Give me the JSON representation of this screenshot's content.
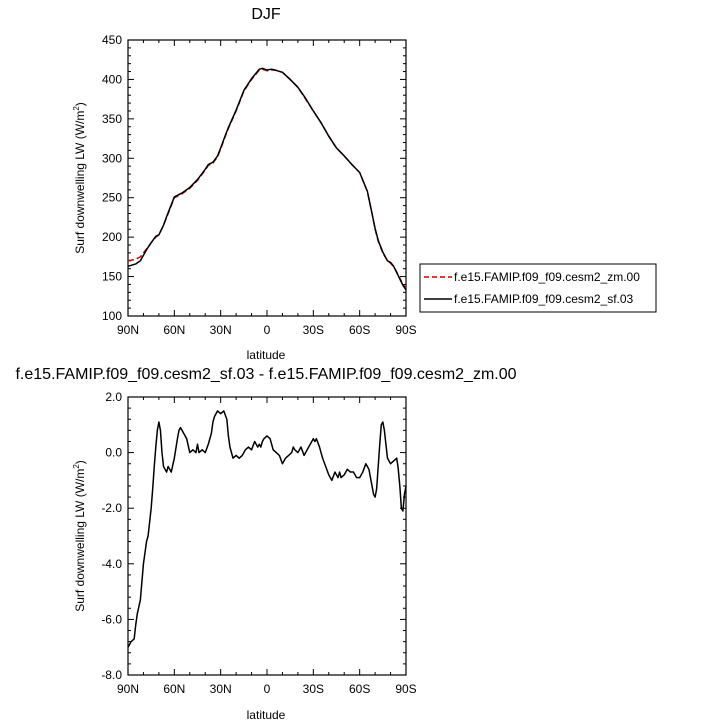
{
  "chart_data": [
    {
      "type": "line",
      "title": "DJF",
      "xlabel": "latitude",
      "ylabel": "Surf downwelling LW (W/m",
      "ylabel_sup": "2",
      "ylabel_end": ")",
      "x_ticklabels": [
        "90N",
        "60N",
        "30N",
        "0",
        "30S",
        "60S",
        "90S"
      ],
      "x_tickvalues": [
        90,
        60,
        30,
        0,
        -30,
        -60,
        -90
      ],
      "xlim": [
        90,
        -90
      ],
      "ylim": [
        100,
        450
      ],
      "y_ticks": [
        100,
        150,
        200,
        250,
        300,
        350,
        400,
        450
      ],
      "y_ticklabels": [
        "100",
        "150",
        "200",
        "250",
        "300",
        "350",
        "400",
        "450"
      ],
      "legend": {
        "placement": "right",
        "entries": [
          "f.e15.FAMIP.f09_f09.cesm2_zm.00",
          "f.e15.FAMIP.f09_f09.cesm2_sf.03"
        ]
      },
      "series": [
        {
          "name": "f.e15.FAMIP.f09_f09.cesm2_zm.00",
          "color": "#cc0000",
          "dash": true,
          "x": [
            90,
            85,
            82,
            78,
            75,
            72,
            70,
            67,
            65,
            62,
            60,
            55,
            50,
            45,
            40,
            38,
            35,
            32,
            30,
            27,
            25,
            20,
            15,
            10,
            5,
            3,
            0,
            -3,
            -5,
            -10,
            -15,
            -20,
            -25,
            -30,
            -35,
            -40,
            -45,
            -50,
            -55,
            -60,
            -65,
            -68,
            -70,
            -72,
            -75,
            -78,
            -80,
            -82,
            -85,
            -88,
            -90
          ],
          "y": [
            170,
            172,
            175,
            185,
            193,
            200,
            203,
            215,
            225,
            240,
            250,
            255,
            262,
            272,
            285,
            291,
            294,
            302,
            312,
            328,
            338,
            360,
            385,
            400,
            412,
            413,
            411,
            412,
            412,
            409,
            400,
            390,
            375,
            360,
            345,
            328,
            313,
            303,
            292,
            282,
            258,
            230,
            210,
            195,
            180,
            170,
            167,
            163,
            152,
            140,
            135
          ]
        },
        {
          "name": "f.e15.FAMIP.f09_f09.cesm2_sf.03",
          "color": "#000000",
          "dash": false,
          "x": [
            90,
            85,
            82,
            78,
            75,
            72,
            70,
            67,
            65,
            62,
            60,
            55,
            50,
            45,
            40,
            38,
            35,
            32,
            30,
            27,
            25,
            20,
            15,
            10,
            5,
            3,
            0,
            -3,
            -5,
            -10,
            -15,
            -20,
            -25,
            -30,
            -35,
            -40,
            -45,
            -50,
            -55,
            -60,
            -65,
            -68,
            -70,
            -72,
            -75,
            -78,
            -80,
            -82,
            -85,
            -88,
            -90
          ],
          "y": [
            163,
            166,
            170,
            184,
            193,
            201,
            203,
            215,
            226,
            241,
            251,
            256,
            263,
            273,
            286,
            292,
            295,
            303,
            313,
            329,
            339,
            361,
            386,
            401,
            413,
            414,
            412,
            413,
            412,
            409,
            400,
            390,
            376,
            360,
            345,
            328,
            313,
            303,
            292,
            282,
            258,
            230,
            211,
            196,
            181,
            170,
            168,
            163,
            151,
            139,
            133
          ]
        }
      ]
    },
    {
      "type": "line",
      "title": "f.e15.FAMIP.f09_f09.cesm2_sf.03 - f.e15.FAMIP.f09_f09.cesm2_zm.00",
      "xlabel": "latitude",
      "ylabel": "Surf downwelling LW (W/m",
      "ylabel_sup": "2",
      "ylabel_end": ")",
      "x_ticklabels": [
        "90N",
        "60N",
        "30N",
        "0",
        "30S",
        "60S",
        "90S"
      ],
      "x_tickvalues": [
        90,
        60,
        30,
        0,
        -30,
        -60,
        -90
      ],
      "xlim": [
        90,
        -90
      ],
      "ylim": [
        -8,
        2
      ],
      "y_ticks": [
        -8,
        -6,
        -4,
        -2,
        0,
        2
      ],
      "y_ticklabels": [
        "-8.0",
        "-6.0",
        "-4.0",
        "-2.0",
        "0.0",
        "2.0"
      ],
      "series": [
        {
          "name": "f.e15.FAMIP.f09_f09.cesm2_sf.03 - f.e15.FAMIP.f09_f09.cesm2_zm.00",
          "color": "#000000",
          "dash": false,
          "x": [
            90,
            88,
            86,
            85,
            84,
            82,
            80,
            79,
            78,
            77,
            75,
            74,
            73,
            72,
            71,
            70,
            69,
            68,
            67,
            65,
            64,
            62,
            60,
            58,
            57,
            56,
            55,
            53,
            52,
            50,
            48,
            46,
            45,
            44,
            42,
            40,
            38,
            36,
            35,
            34,
            32,
            30,
            28,
            26,
            25,
            24,
            22,
            20,
            18,
            16,
            14,
            12,
            10,
            8,
            6,
            5,
            4,
            3,
            2,
            0,
            -2,
            -4,
            -6,
            -8,
            -10,
            -12,
            -14,
            -16,
            -17,
            -18,
            -20,
            -22,
            -24,
            -26,
            -28,
            -30,
            -31,
            -32,
            -34,
            -36,
            -38,
            -40,
            -42,
            -44,
            -46,
            -47,
            -48,
            -50,
            -52,
            -54,
            -56,
            -58,
            -60,
            -62,
            -64,
            -66,
            -68,
            -69,
            -70,
            -71,
            -72,
            -73,
            -74,
            -75,
            -76,
            -77,
            -78,
            -79,
            -80,
            -82,
            -84,
            -85,
            -86,
            -87,
            -88,
            -89,
            -90
          ],
          "y": [
            -7.0,
            -6.8,
            -6.7,
            -6.2,
            -5.8,
            -5.3,
            -4.0,
            -3.6,
            -3.2,
            -3.0,
            -2.0,
            -1.3,
            -0.5,
            0.2,
            0.8,
            1.1,
            0.8,
            0.0,
            -0.5,
            -0.7,
            -0.5,
            -0.7,
            -0.2,
            0.5,
            0.8,
            0.9,
            0.8,
            0.6,
            0.5,
            0.0,
            0.1,
            0.0,
            0.3,
            0.0,
            0.1,
            0.0,
            0.3,
            0.7,
            1.1,
            1.3,
            1.5,
            1.4,
            1.5,
            1.2,
            0.6,
            0.2,
            -0.2,
            -0.1,
            -0.2,
            -0.1,
            0.1,
            0.2,
            0.1,
            0.4,
            0.2,
            0.3,
            0.2,
            0.4,
            0.5,
            0.6,
            0.5,
            0.1,
            0.0,
            -0.1,
            -0.4,
            -0.2,
            -0.1,
            0.0,
            0.2,
            0.1,
            0.0,
            0.2,
            -0.1,
            0.1,
            0.3,
            0.5,
            0.4,
            0.5,
            0.2,
            -0.2,
            -0.5,
            -0.8,
            -1.0,
            -0.7,
            -0.9,
            -0.7,
            -0.9,
            -0.8,
            -0.6,
            -0.7,
            -0.7,
            -0.9,
            -0.9,
            -0.7,
            -0.4,
            -0.6,
            -1.2,
            -1.5,
            -1.6,
            -1.3,
            -0.5,
            0.3,
            1.0,
            1.1,
            0.8,
            0.3,
            -0.2,
            -0.3,
            -0.4,
            -0.3,
            -0.2,
            -0.6,
            -1.2,
            -2.0,
            -2.1,
            -1.5,
            -1.2
          ]
        }
      ]
    }
  ]
}
